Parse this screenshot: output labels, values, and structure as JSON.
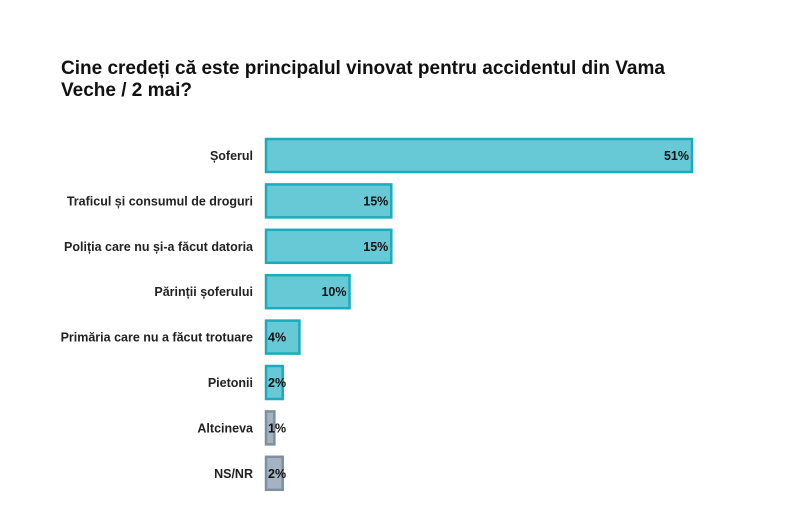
{
  "chart_data": {
    "type": "bar",
    "orientation": "horizontal",
    "title": "Cine credeți că este principalul vinovat pentru accidentul din Vama Veche / 2 mai?",
    "categories": [
      "Șoferul",
      "Traficul și consumul de droguri",
      "Poliția care nu și-a făcut datoria",
      "Părinții șoferului",
      "Primăria care nu a făcut trotuare",
      "Pietonii",
      "Altcineva",
      "NS/NR"
    ],
    "values": [
      51,
      15,
      15,
      10,
      4,
      2,
      1,
      2
    ],
    "value_labels": [
      "51%",
      "15%",
      "15%",
      "10%",
      "4%",
      "2%",
      "1%",
      "2%"
    ],
    "xlim": [
      0,
      51
    ],
    "grid": false,
    "colors": {
      "main_fill": "#67c8d6",
      "main_border": "#1aabbd",
      "other_fill": "#a3b3c2",
      "other_border": "#7e8fa0"
    },
    "grey_categories": [
      "Altcineva",
      "NS/NR"
    ]
  }
}
